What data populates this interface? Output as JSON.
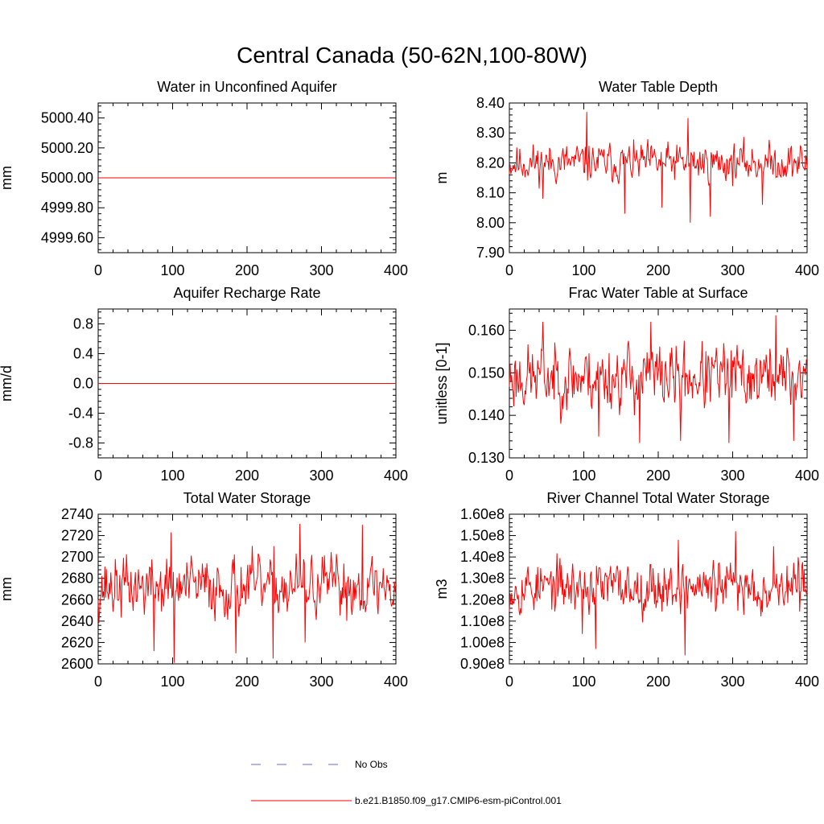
{
  "figure_title": "Central Canada (50-62N,100-80W)",
  "legend": {
    "entries": [
      {
        "label": "No Obs",
        "color": "#6a6ad8",
        "style": "dashed"
      },
      {
        "label": "b.e21.B1850.f09_g17.CMIP6-esm-piControl.001",
        "color": "#ff0000",
        "style": "solid"
      }
    ]
  },
  "chart_data": [
    {
      "type": "line",
      "title": "Water in Unconfined Aquifer",
      "xlabel": "",
      "ylabel": "mm",
      "xlim": [
        0,
        400
      ],
      "ylim": [
        4999.5,
        5000.5
      ],
      "xticks": [
        0,
        100,
        200,
        300,
        400
      ],
      "xtick_labels": [
        "0",
        "100",
        "200",
        "300",
        "400"
      ],
      "yticks": [
        4999.6,
        4999.8,
        5000.0,
        5000.2,
        5000.4
      ],
      "ytick_labels": [
        "4999.60",
        "4999.80",
        "5000.00",
        "5000.20",
        "5000.40"
      ],
      "grid": false,
      "series": [
        {
          "color": "#ff0000",
          "constant": 5000.0,
          "x_range": [
            0,
            400
          ]
        }
      ]
    },
    {
      "type": "line",
      "title": "Water Table Depth",
      "xlabel": "",
      "ylabel": "m",
      "xlim": [
        0,
        400
      ],
      "ylim": [
        7.9,
        8.4
      ],
      "xticks": [
        0,
        100,
        200,
        300,
        400
      ],
      "xtick_labels": [
        "0",
        "100",
        "200",
        "300",
        "400"
      ],
      "yticks": [
        7.9,
        8.0,
        8.1,
        8.2,
        8.3,
        8.4
      ],
      "ytick_labels": [
        "7.90",
        "8.00",
        "8.10",
        "8.20",
        "8.30",
        "8.40"
      ],
      "grid": false,
      "series": [
        {
          "color": "#ff0000",
          "x_range": [
            0,
            400
          ],
          "mean": 8.2,
          "amplitude": 0.045,
          "seed": 11,
          "extremes": [
            [
              104,
              8.37
            ],
            [
              155,
              8.03
            ],
            [
              240,
              8.35
            ],
            [
              243,
              8.0
            ],
            [
              270,
              8.02
            ],
            [
              205,
              8.05
            ],
            [
              340,
              8.06
            ],
            [
              45,
              8.08
            ]
          ]
        }
      ]
    },
    {
      "type": "line",
      "title": "Aquifer Recharge Rate",
      "xlabel": "",
      "ylabel": "mm/d",
      "xlim": [
        0,
        400
      ],
      "ylim": [
        -1.0,
        1.0
      ],
      "xticks": [
        0,
        100,
        200,
        300,
        400
      ],
      "xtick_labels": [
        "0",
        "100",
        "200",
        "300",
        "400"
      ],
      "yticks": [
        -0.8,
        -0.4,
        0.0,
        0.4,
        0.8
      ],
      "ytick_labels": [
        "-0.8",
        "-0.4",
        "0.0",
        "0.4",
        "0.8"
      ],
      "grid": false,
      "series": [
        {
          "color": "#ff0000",
          "constant": 0.0,
          "x_range": [
            0,
            400
          ]
        }
      ]
    },
    {
      "type": "line",
      "title": "Frac Water Table at Surface",
      "xlabel": "",
      "ylabel": "unitless [0-1]",
      "xlim": [
        0,
        400
      ],
      "ylim": [
        0.13,
        0.165
      ],
      "xticks": [
        0,
        100,
        200,
        300,
        400
      ],
      "xtick_labels": [
        "0",
        "100",
        "200",
        "300",
        "400"
      ],
      "yticks": [
        0.13,
        0.14,
        0.15,
        0.16
      ],
      "ytick_labels": [
        "0.130",
        "0.140",
        "0.150",
        "0.160"
      ],
      "grid": false,
      "series": [
        {
          "color": "#ff0000",
          "x_range": [
            0,
            400
          ],
          "mean": 0.149,
          "amplitude": 0.0055,
          "seed": 23,
          "extremes": [
            [
              45,
              0.162
            ],
            [
              120,
              0.135
            ],
            [
              175,
              0.1335
            ],
            [
              190,
              0.162
            ],
            [
              230,
              0.134
            ],
            [
              295,
              0.1335
            ],
            [
              358,
              0.1635
            ],
            [
              382,
              0.134
            ]
          ]
        }
      ]
    },
    {
      "type": "line",
      "title": "Total Water Storage",
      "xlabel": "",
      "ylabel": "mm",
      "xlim": [
        0,
        400
      ],
      "ylim": [
        2600,
        2740
      ],
      "xticks": [
        0,
        100,
        200,
        300,
        400
      ],
      "xtick_labels": [
        "0",
        "100",
        "200",
        "300",
        "400"
      ],
      "yticks": [
        2600,
        2620,
        2640,
        2660,
        2680,
        2700,
        2720,
        2740
      ],
      "ytick_labels": [
        "2600",
        "2620",
        "2640",
        "2660",
        "2680",
        "2700",
        "2720",
        "2740"
      ],
      "grid": false,
      "series": [
        {
          "color": "#ff0000",
          "x_range": [
            0,
            400
          ],
          "mean": 2672,
          "amplitude": 20,
          "seed": 37,
          "extremes": [
            [
              102,
              2601
            ],
            [
              98,
              2723
            ],
            [
              185,
              2610
            ],
            [
              235,
              2605
            ],
            [
              271,
              2731
            ],
            [
              278,
              2620
            ],
            [
              355,
              2730
            ],
            [
              75,
              2612
            ]
          ]
        }
      ]
    },
    {
      "type": "line",
      "title": "River Channel Total Water Storage",
      "xlabel": "",
      "ylabel": "m3",
      "xlim": [
        0,
        400
      ],
      "ylim": [
        90000000,
        160000000
      ],
      "xticks": [
        0,
        100,
        200,
        300,
        400
      ],
      "xtick_labels": [
        "0",
        "100",
        "200",
        "300",
        "400"
      ],
      "yticks": [
        90000000,
        100000000,
        110000000,
        120000000,
        130000000,
        140000000,
        150000000,
        160000000
      ],
      "ytick_labels": [
        "0.90e8",
        "1.00e8",
        "1.10e8",
        "1.20e8",
        "1.30e8",
        "1.40e8",
        "1.50e8",
        "1.60e8"
      ],
      "grid": false,
      "series": [
        {
          "color": "#ff0000",
          "x_range": [
            0,
            400
          ],
          "mean": 126000000,
          "amplitude": 8500000,
          "seed": 53,
          "extremes": [
            [
              236,
              94000000
            ],
            [
              304,
              152000000
            ],
            [
              116,
              97000000
            ],
            [
              227,
              148000000
            ],
            [
              98,
              104000000
            ],
            [
              355,
              145000000
            ]
          ]
        }
      ]
    }
  ]
}
